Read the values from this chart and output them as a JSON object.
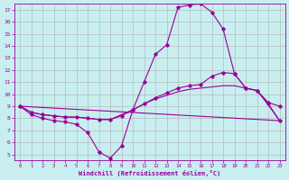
{
  "xlabel": "Windchill (Refroidissement éolien,°C)",
  "background_color": "#c8eef0",
  "grid_color": "#b0b0b0",
  "line_color": "#990099",
  "xlim": [
    -0.5,
    23.5
  ],
  "ylim": [
    4.5,
    17.5
  ],
  "yticks": [
    5,
    6,
    7,
    8,
    9,
    10,
    11,
    12,
    13,
    14,
    15,
    16,
    17
  ],
  "xticks": [
    0,
    1,
    2,
    3,
    4,
    5,
    6,
    7,
    8,
    9,
    10,
    11,
    12,
    13,
    14,
    15,
    16,
    17,
    18,
    19,
    20,
    21,
    22,
    23
  ],
  "curve1_x": [
    0,
    1,
    2,
    3,
    4,
    5,
    6,
    7,
    8,
    9,
    10,
    11,
    12,
    13,
    14,
    15,
    16,
    17,
    18,
    19,
    20,
    21,
    22,
    23
  ],
  "curve1_y": [
    9.0,
    8.3,
    8.0,
    7.8,
    7.7,
    7.5,
    6.8,
    5.2,
    4.7,
    5.7,
    8.7,
    11.0,
    13.3,
    14.1,
    17.2,
    17.4,
    17.5,
    16.8,
    15.4,
    11.7,
    10.5,
    10.3,
    9.2,
    7.8
  ],
  "curve2_x": [
    0,
    1,
    2,
    3,
    4,
    5,
    6,
    7,
    8,
    9,
    10,
    11,
    12,
    13,
    14,
    15,
    16,
    17,
    18,
    19,
    20,
    21,
    22,
    23
  ],
  "curve2_y": [
    9.0,
    8.5,
    8.3,
    8.2,
    8.1,
    8.1,
    8.0,
    7.9,
    7.9,
    8.2,
    8.7,
    9.2,
    9.7,
    10.1,
    10.5,
    10.7,
    10.8,
    11.5,
    11.8,
    11.7,
    10.5,
    10.3,
    9.3,
    9.0
  ],
  "curve3_x": [
    0,
    1,
    2,
    3,
    4,
    5,
    6,
    7,
    8,
    9,
    10,
    11,
    12,
    13,
    14,
    15,
    16,
    17,
    18,
    19,
    20,
    21,
    22,
    23
  ],
  "curve3_y": [
    9.0,
    8.5,
    8.3,
    8.2,
    8.1,
    8.1,
    8.0,
    7.9,
    7.9,
    8.3,
    8.7,
    9.2,
    9.6,
    9.9,
    10.2,
    10.4,
    10.5,
    10.6,
    10.7,
    10.7,
    10.5,
    10.3,
    9.1,
    7.8
  ],
  "curve4_x": [
    0,
    23
  ],
  "curve4_y": [
    9.0,
    7.8
  ]
}
